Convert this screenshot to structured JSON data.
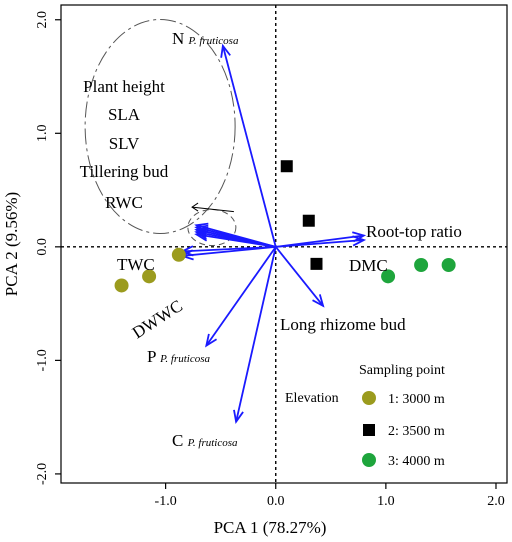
{
  "chart_data": {
    "type": "scatter",
    "xlabel": "PCA 1 (78.27%)",
    "ylabel": "PCA 2 (9.56%)",
    "xlim": [
      -1.95,
      2.1
    ],
    "ylim": [
      -2.08,
      2.13
    ],
    "xticks": [
      {
        "value": -1.0,
        "label": "-1.0"
      },
      {
        "value": 0.0,
        "label": "0.0"
      },
      {
        "value": 1.0,
        "label": "1.0"
      },
      {
        "value": 2.0,
        "label": "2.0"
      }
    ],
    "yticks": [
      {
        "value": -2.0,
        "label": "-2.0"
      },
      {
        "value": -1.0,
        "label": "-1.0"
      },
      {
        "value": 0.0,
        "label": "0.0"
      },
      {
        "value": 1.0,
        "label": "1.0"
      },
      {
        "value": 2.0,
        "label": "2.0"
      }
    ],
    "reference_lines": {
      "x": 0.0,
      "y": 0.0,
      "style": "dotted"
    },
    "series": [
      {
        "name": "1: 3000 m",
        "marker": "circle",
        "color": "#9b9b1e",
        "points": [
          [
            -1.4,
            -0.34
          ],
          [
            -1.15,
            -0.26
          ],
          [
            -0.88,
            -0.07
          ]
        ]
      },
      {
        "name": "2: 3500 m",
        "marker": "square",
        "color": "#000000",
        "points": [
          [
            0.1,
            0.71
          ],
          [
            0.3,
            0.23
          ],
          [
            0.37,
            -0.15
          ]
        ]
      },
      {
        "name": "3: 4000 m",
        "marker": "circle",
        "color": "#1ea53c",
        "points": [
          [
            1.02,
            -0.26
          ],
          [
            1.32,
            -0.16
          ],
          [
            1.57,
            -0.16
          ]
        ]
      }
    ],
    "loadings": [
      {
        "label": "N",
        "species": "P. fruticosa",
        "x": -0.48,
        "y": 1.77
      },
      {
        "label": "Root-top ratio",
        "species": "",
        "x": 0.8,
        "y": 0.1
      },
      {
        "label": "DMC",
        "species": "",
        "x": 0.8,
        "y": 0.06
      },
      {
        "label": "Long  rhizome bud",
        "species": "",
        "x": 0.43,
        "y": -0.52
      },
      {
        "label": "P",
        "species": "P. fruticosa",
        "x": -0.63,
        "y": -0.87
      },
      {
        "label": "C",
        "species": "P. fruticosa",
        "x": -0.36,
        "y": -1.54
      },
      {
        "label": "TWC",
        "species": "",
        "x": -0.85,
        "y": -0.08
      },
      {
        "label": "DWWC",
        "species": "",
        "x": -0.85,
        "y": -0.04
      },
      {
        "label": "Plant height",
        "species": "",
        "x": -0.72,
        "y": 0.19
      },
      {
        "label": "SLA",
        "species": "",
        "x": -0.72,
        "y": 0.17
      },
      {
        "label": "SLV",
        "species": "",
        "x": -0.72,
        "y": 0.15
      },
      {
        "label": "Tillering bud",
        "species": "",
        "x": -0.72,
        "y": 0.13
      },
      {
        "label": "RWC",
        "species": "",
        "x": -0.72,
        "y": 0.11
      }
    ],
    "grouped_labels": [
      "Plant height",
      "SLA",
      "SLV",
      "Tillering bud",
      "RWC"
    ],
    "legend": {
      "title": "Sampling point",
      "group_label": "Elevation",
      "placement": "bottom-right"
    },
    "colors": {
      "arrow": "#1a1aff",
      "frame": "#000000"
    }
  }
}
